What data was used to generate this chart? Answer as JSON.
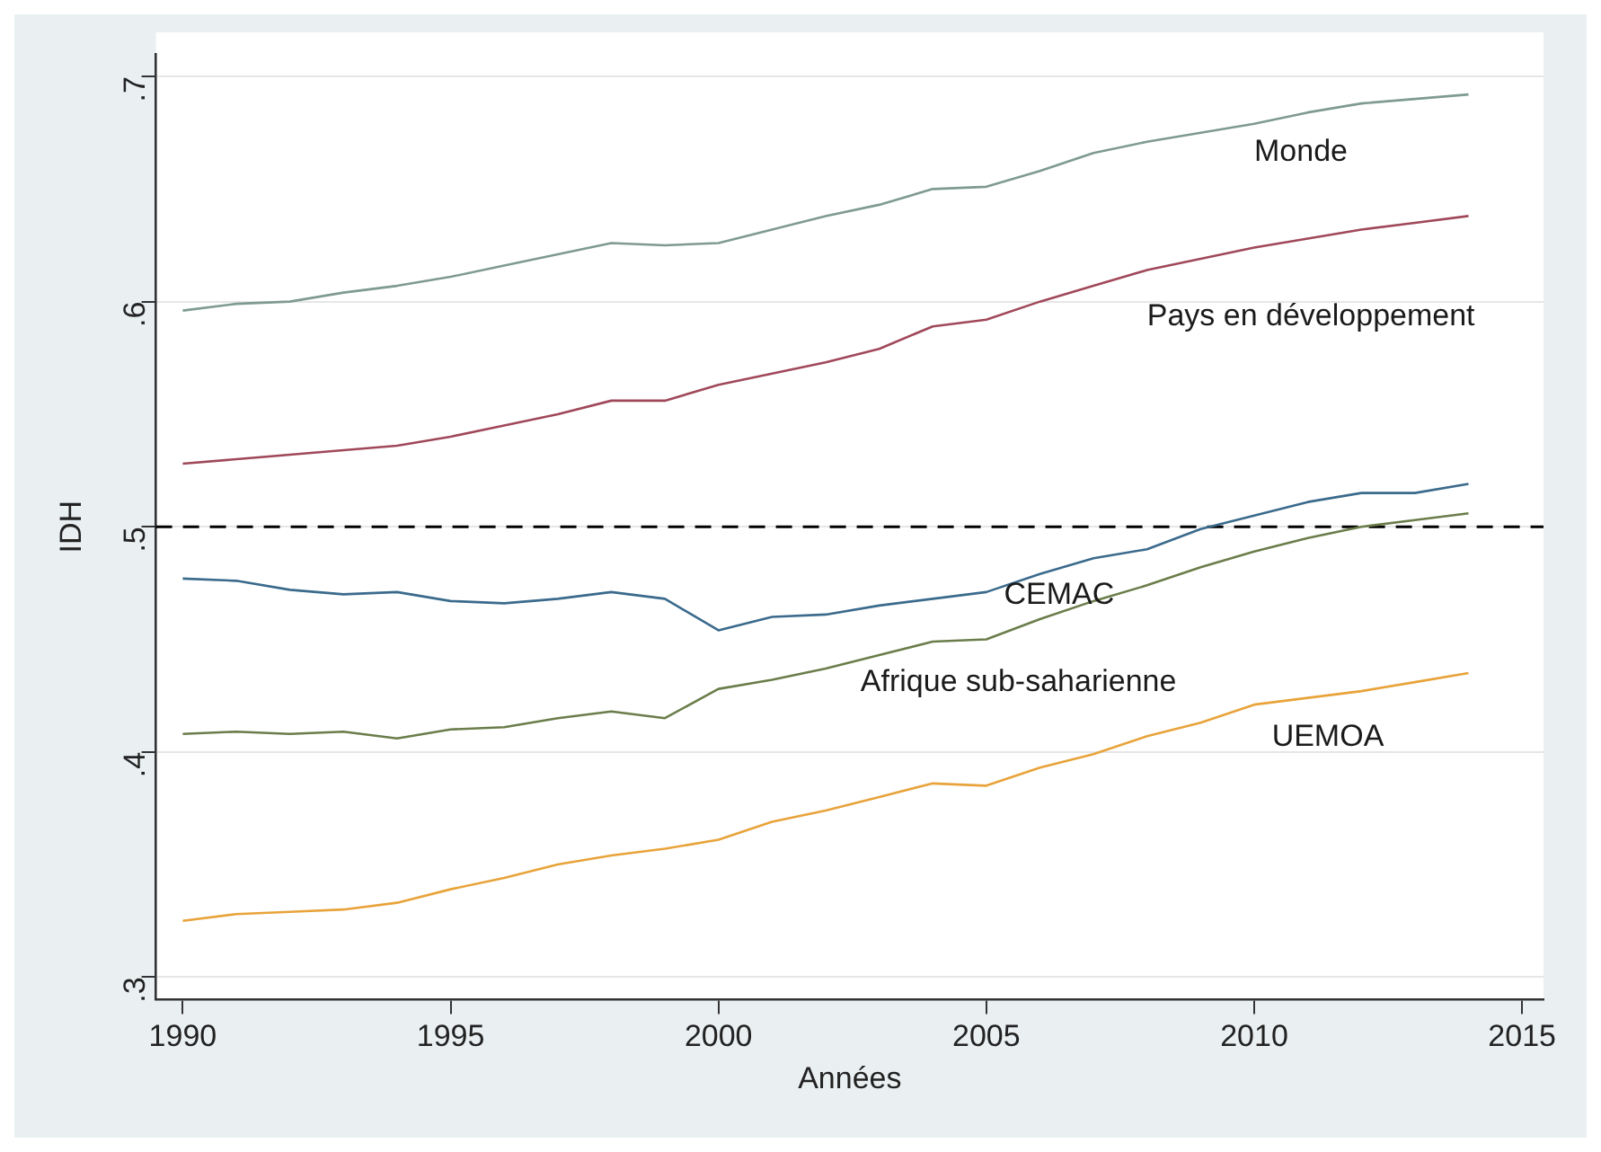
{
  "chart_data": {
    "type": "line",
    "xlabel": "Années",
    "ylabel": "IDH",
    "x": [
      1990,
      1991,
      1992,
      1993,
      1994,
      1995,
      1996,
      1997,
      1998,
      1999,
      2000,
      2001,
      2002,
      2003,
      2004,
      2005,
      2006,
      2007,
      2008,
      2009,
      2010,
      2011,
      2012,
      2013,
      2014
    ],
    "series": [
      {
        "name": "Monde",
        "color": "#7f9a93",
        "values": [
          0.596,
          0.599,
          0.6,
          0.604,
          0.607,
          0.611,
          0.616,
          0.621,
          0.626,
          0.625,
          0.626,
          0.632,
          0.638,
          0.643,
          0.65,
          0.651,
          0.658,
          0.666,
          0.671,
          0.675,
          0.679,
          0.684,
          0.688,
          0.69,
          0.692
        ]
      },
      {
        "name": "Pays en développement",
        "color": "#a0485a",
        "values": [
          0.528,
          0.53,
          0.532,
          0.534,
          0.536,
          0.54,
          0.545,
          0.55,
          0.556,
          0.556,
          0.563,
          0.568,
          0.573,
          0.579,
          0.589,
          0.592,
          0.6,
          0.607,
          0.614,
          0.619,
          0.624,
          0.628,
          0.632,
          0.635,
          0.638
        ]
      },
      {
        "name": "CEMAC",
        "color": "#3a6a8c",
        "values": [
          0.477,
          0.476,
          0.472,
          0.47,
          0.471,
          0.467,
          0.466,
          0.468,
          0.471,
          0.468,
          0.454,
          0.46,
          0.461,
          0.465,
          0.468,
          0.471,
          0.479,
          0.486,
          0.49,
          0.499,
          0.505,
          0.511,
          0.515,
          0.515,
          0.519
        ]
      },
      {
        "name": "Afrique sub-saharienne",
        "color": "#6b7d4a",
        "values": [
          0.408,
          0.409,
          0.408,
          0.409,
          0.406,
          0.41,
          0.411,
          0.415,
          0.418,
          0.415,
          0.428,
          0.432,
          0.437,
          0.443,
          0.449,
          0.45,
          0.459,
          0.467,
          0.474,
          0.482,
          0.489,
          0.495,
          0.5,
          0.503,
          0.506
        ]
      },
      {
        "name": "UEMOA",
        "color": "#e8a33a",
        "values": [
          0.325,
          0.328,
          0.329,
          0.33,
          0.333,
          0.339,
          0.344,
          0.35,
          0.354,
          0.357,
          0.361,
          0.369,
          0.374,
          0.38,
          0.386,
          0.385,
          0.393,
          0.399,
          0.407,
          0.413,
          0.421,
          0.424,
          0.427,
          0.431,
          0.435
        ]
      }
    ],
    "xlim": [
      1989.5,
      2015.4
    ],
    "xticks": [
      1990,
      1995,
      2000,
      2005,
      2010,
      2015
    ],
    "ylim": [
      0.29,
      0.71
    ],
    "yticks": [
      {
        "value": 0.3,
        "label": ".3"
      },
      {
        "value": 0.4,
        "label": ".4"
      },
      {
        "value": 0.5,
        "label": ".5"
      },
      {
        "value": 0.6,
        "label": ".6"
      },
      {
        "value": 0.7,
        "label": ".7"
      }
    ],
    "ref_lines": [
      {
        "axis": "y",
        "value": 0.5,
        "color": "#000000",
        "line_style": "dashed"
      }
    ],
    "grid": "y",
    "legend": false,
    "marker": "none",
    "line_style": "solid"
  }
}
